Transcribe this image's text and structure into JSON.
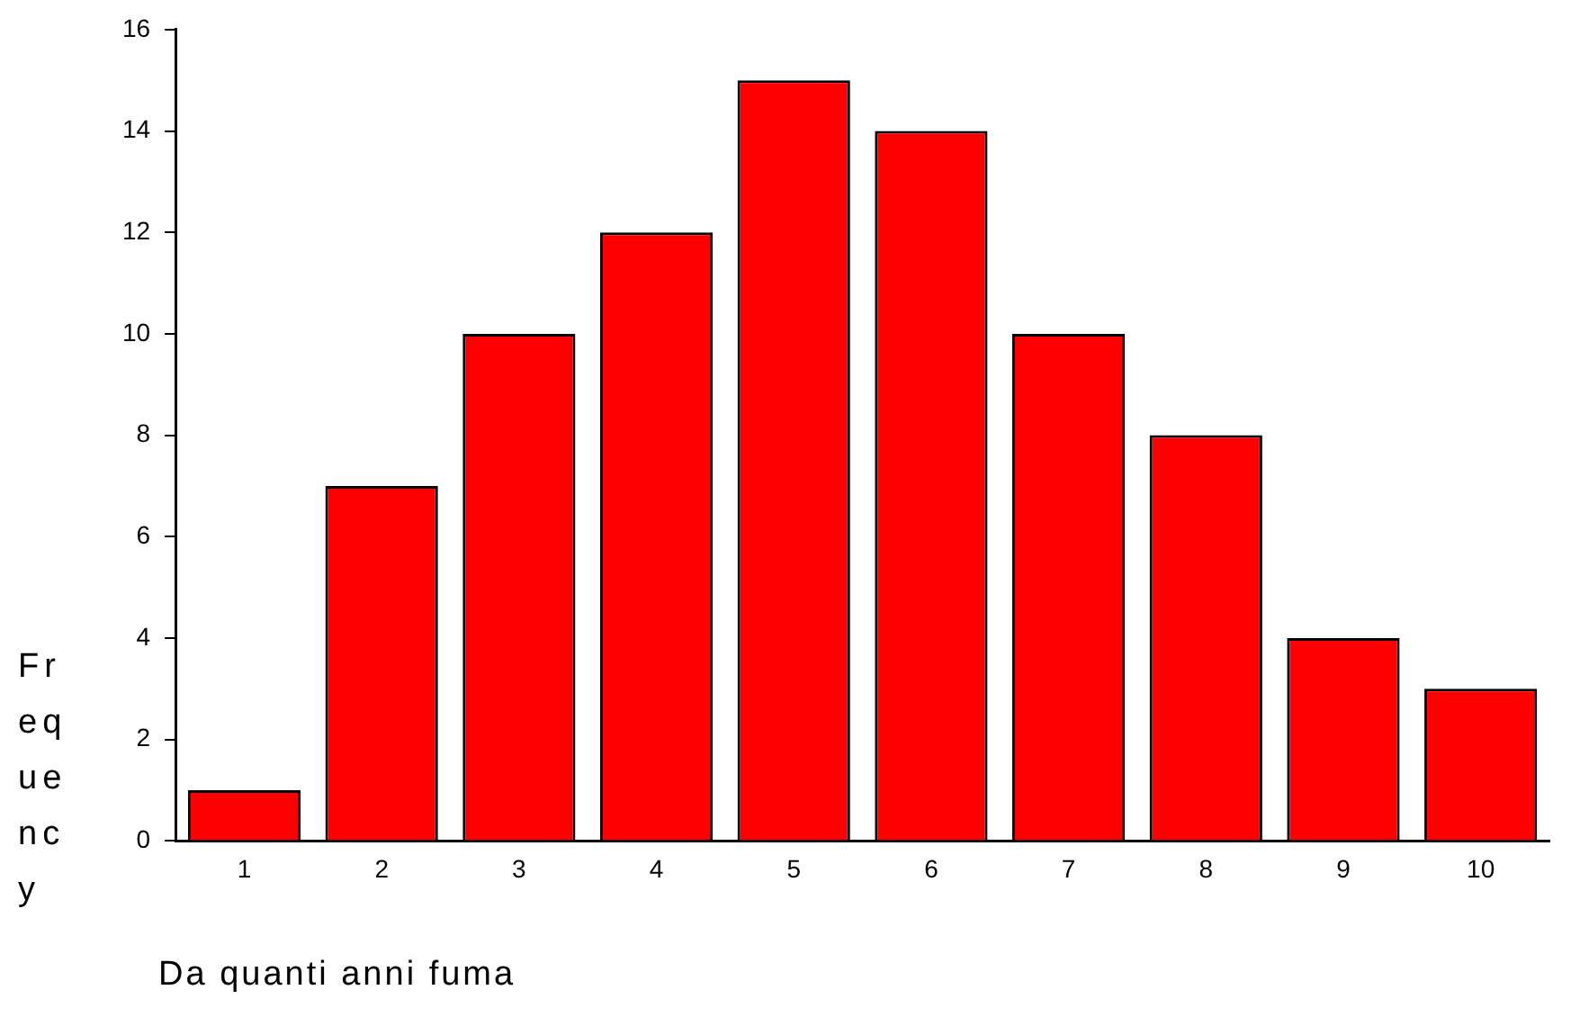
{
  "chart_data": {
    "type": "bar",
    "xlabel": "Da quanti anni fuma",
    "ylabel": "Frequency",
    "categories": [
      "1",
      "2",
      "3",
      "4",
      "5",
      "6",
      "7",
      "8",
      "9",
      "10"
    ],
    "values": [
      1,
      7,
      10,
      12,
      15,
      14,
      10,
      8,
      4,
      3
    ],
    "color": "#ff0000",
    "ylim": [
      0,
      16
    ],
    "yticks": [
      0,
      2,
      4,
      6,
      8,
      10,
      12,
      14,
      16
    ],
    "legend": false
  }
}
